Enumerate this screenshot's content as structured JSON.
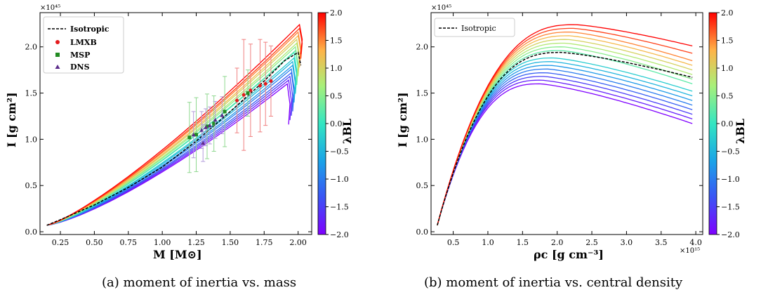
{
  "chart_data": [
    {
      "type": "line",
      "panel_caption": "(a) moment of inertia vs. mass",
      "xlabel": "M [M⊙]",
      "ylabel": "I [g cm²]",
      "y_multiplier": "×10⁴⁵",
      "xlim": [
        0.1,
        2.1
      ],
      "ylim": [
        -0.03,
        2.37
      ],
      "xticks": [
        "0.25",
        "0.50",
        "0.75",
        "1.00",
        "1.25",
        "1.50",
        "1.75",
        "2.00"
      ],
      "yticks": [
        "0.0",
        "0.5",
        "1.0",
        "1.5",
        "2.0"
      ],
      "colorbar": {
        "label": "λBL",
        "range": [
          -2.0,
          2.0
        ],
        "ticks": [
          "2.0",
          "1.5",
          "1.0",
          "0.5",
          "0.0",
          "−0.5",
          "−1.0",
          "−1.5",
          "−2.0"
        ]
      },
      "curve_family": {
        "lambda_values": [
          -2.0,
          -1.75,
          -1.5,
          -1.25,
          -1.0,
          -0.75,
          -0.5,
          -0.25,
          0.0,
          0.25,
          0.5,
          0.75,
          1.0,
          1.25,
          1.5,
          1.75,
          2.0
        ],
        "peak_mass": [
          1.92,
          1.93,
          1.94,
          1.95,
          1.95,
          1.96,
          1.96,
          1.97,
          1.97,
          1.98,
          1.98,
          1.99,
          1.99,
          2.0,
          2.0,
          2.01,
          2.01
        ],
        "peak_I": [
          1.6,
          1.64,
          1.68,
          1.72,
          1.76,
          1.8,
          1.84,
          1.88,
          1.94,
          1.96,
          2.0,
          2.04,
          2.08,
          2.12,
          2.16,
          2.2,
          2.24
        ]
      },
      "isotropic_curve": {
        "M": [
          0.15,
          0.25,
          0.5,
          0.75,
          1.0,
          1.25,
          1.5,
          1.75,
          1.9,
          2.0,
          2.02
        ],
        "I": [
          0.07,
          0.13,
          0.29,
          0.48,
          0.7,
          0.98,
          1.3,
          1.63,
          1.85,
          1.94,
          1.8
        ]
      },
      "legend": [
        "Isotropic",
        "LMXB",
        "MSP",
        "DNS"
      ],
      "observations": {
        "LMXB": {
          "color": "#e41a1c",
          "points": [
            [
              1.55,
              1.42,
              0.35
            ],
            [
              1.6,
              1.48,
              0.6
            ],
            [
              1.65,
              1.53,
              0.5
            ],
            [
              1.72,
              1.58,
              0.5
            ],
            [
              1.76,
              1.6,
              0.45
            ],
            [
              1.8,
              1.63,
              0.38
            ]
          ]
        },
        "MSP": {
          "color": "#228b22",
          "points": [
            [
              1.2,
              1.02,
              0.38
            ],
            [
              1.25,
              1.05,
              0.4
            ],
            [
              1.33,
              1.14,
              0.35
            ],
            [
              1.38,
              1.17,
              0.3
            ],
            [
              1.46,
              1.3,
              0.38
            ],
            [
              1.63,
              1.5,
              0.25
            ]
          ]
        },
        "DNS": {
          "color": "#5b2c8a",
          "points": [
            [
              1.23,
              1.05,
              0.25
            ],
            [
              1.29,
              1.1,
              0.2
            ],
            [
              1.3,
              0.96,
              0.2
            ],
            [
              1.32,
              1.13,
              0.2
            ],
            [
              1.35,
              1.15,
              0.2
            ],
            [
              1.39,
              1.21,
              0.2
            ],
            [
              1.44,
              1.26,
              0.2
            ]
          ]
        }
      }
    },
    {
      "type": "line",
      "panel_caption": "(b) moment of inertia vs. central density",
      "xlabel": "ρc [g cm⁻³]",
      "ylabel": "I [g cm²]",
      "x_multiplier": "×10¹⁵",
      "y_multiplier": "×10⁴⁵",
      "xlim": [
        0.18,
        4.1
      ],
      "ylim": [
        -0.03,
        2.37
      ],
      "xticks": [
        "0.5",
        "1.0",
        "1.5",
        "2.0",
        "2.5",
        "3.0",
        "3.5",
        "4.0"
      ],
      "yticks": [
        "0.0",
        "0.5",
        "1.0",
        "1.5",
        "2.0"
      ],
      "colorbar": {
        "label": "λBL",
        "range": [
          -2.0,
          2.0
        ],
        "ticks": [
          "2.0",
          "1.5",
          "1.0",
          "0.5",
          "0.0",
          "−0.5",
          "−1.0",
          "−1.5",
          "−2.0"
        ]
      },
      "curve_family": {
        "lambda_values": [
          -2.0,
          -1.75,
          -1.5,
          -1.25,
          -1.0,
          -0.75,
          -0.5,
          -0.25,
          0.0,
          0.25,
          0.5,
          0.75,
          1.0,
          1.25,
          1.5,
          1.75,
          2.0
        ],
        "peak_rho": [
          1.75,
          1.77,
          1.8,
          1.83,
          1.86,
          1.89,
          1.92,
          1.95,
          2.05,
          2.05,
          2.08,
          2.11,
          2.14,
          2.17,
          2.2,
          2.23,
          2.26
        ],
        "peak_I": [
          1.6,
          1.64,
          1.68,
          1.72,
          1.76,
          1.8,
          1.84,
          1.88,
          1.94,
          1.96,
          2.0,
          2.04,
          2.08,
          2.12,
          2.16,
          2.2,
          2.24
        ],
        "end_I": [
          1.17,
          1.22,
          1.27,
          1.32,
          1.37,
          1.42,
          1.47,
          1.52,
          1.67,
          1.6,
          1.65,
          1.7,
          1.75,
          1.8,
          1.85,
          1.93,
          2.01
        ]
      },
      "isotropic_curve": {
        "rho": [
          0.27,
          0.5,
          1.0,
          1.5,
          2.0,
          2.5,
          3.0,
          3.5,
          3.95
        ],
        "I": [
          0.07,
          0.35,
          1.25,
          1.8,
          1.94,
          1.9,
          1.83,
          1.75,
          1.67
        ]
      },
      "legend": [
        "Isotropic"
      ]
    }
  ]
}
